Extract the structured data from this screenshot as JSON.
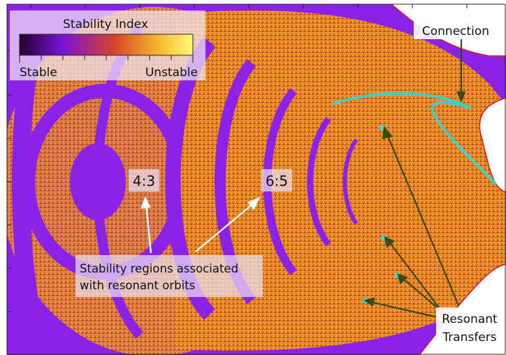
{
  "legend": {
    "title": "Stability Index",
    "low_label": "Stable",
    "high_label": "Unstable"
  },
  "annotations": {
    "resonance_a": "4:3",
    "resonance_b": "6:5",
    "stability_line1": "Stability regions associated",
    "stability_line2": "with resonant orbits",
    "connection": "Connection",
    "resonant_line1": "Resonant",
    "resonant_line2": "Transfers"
  },
  "colors": {
    "stable": "#22002e",
    "mid_stable": "#7a12d6",
    "mid": "#d6452a",
    "unstable": "#f6b82c",
    "max": "#fffb7a",
    "connection_curve": "#3fcfc4",
    "transfer_points": "#33d9dd",
    "boundary": "#e3102a",
    "annotation_arrow": "#3b4a14"
  }
}
